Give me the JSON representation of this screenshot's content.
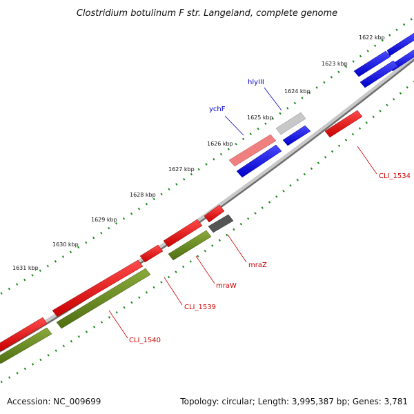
{
  "title": "Clostridium botulinum F str. Langeland, complete genome",
  "footer": {
    "accession": "Accession: NC_009699",
    "summary": "Topology: circular; Length: 3,995,387 bp; Genes: 3,781"
  },
  "ticks": [
    "1622 kbp",
    "1623 kbp",
    "1624 kbp",
    "1625 kbp",
    "1626 kbp",
    "1627 kbp",
    "1628 kbp",
    "1629 kbp",
    "1630 kbp",
    "1631 kbp"
  ],
  "genes": {
    "CLI_1534": "CLI_1534",
    "ychF": "ychF",
    "hlyIII": "hlyIII",
    "mraZ": "mraZ",
    "mraW": "mraW",
    "CLI_1539": "CLI_1539",
    "CLI_1540": "CLI_1540"
  },
  "colors": {
    "forward_cds": "#0000ee",
    "reverse_cds": "#ee0000",
    "highlight_pink": "#f08080",
    "grey_gene": "#c8c8c8",
    "dark_grey_gene": "#555555",
    "olive_gene": "#6b8e23",
    "backbone": "#888888",
    "tick_dots": "#1a8a1a",
    "label_blue": "#0000cc",
    "label_red": "#cc0000"
  }
}
